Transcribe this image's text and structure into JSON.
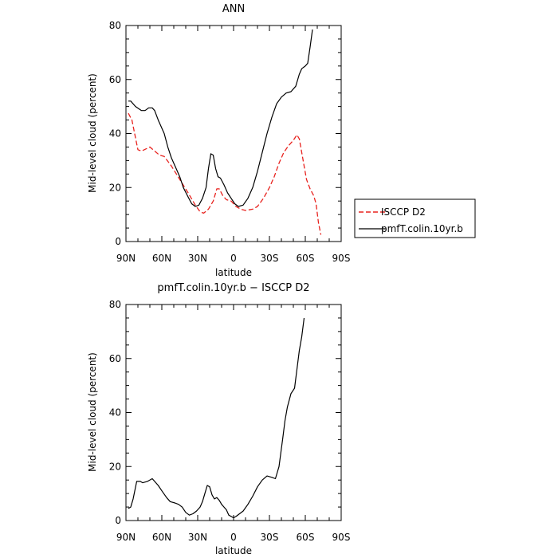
{
  "chart_data": [
    {
      "type": "line",
      "title": "ANN",
      "xlabel": "latitude",
      "ylabel": "Mid-level cloud (percent)",
      "xlim": [
        -90,
        90
      ],
      "ylim": [
        0,
        80
      ],
      "x_ticks": [
        -90,
        -60,
        -30,
        0,
        30,
        60,
        90
      ],
      "x_tick_labels": [
        "90N",
        "60N",
        "30N",
        "0",
        "30S",
        "60S",
        "90S"
      ],
      "y_ticks": [
        0,
        20,
        40,
        60,
        80
      ],
      "y_tick_labels": [
        "0",
        "20",
        "40",
        "60",
        "80"
      ],
      "legend": "outside-right",
      "series": [
        {
          "name": "ISCCP D2",
          "color": "#e8221e",
          "dash": "dashed",
          "points": [
            [
              -88,
              47.5
            ],
            [
              -85,
              45
            ],
            [
              -80,
              34
            ],
            [
              -77,
              33.5
            ],
            [
              -70,
              35
            ],
            [
              -62,
              32
            ],
            [
              -58,
              31.5
            ],
            [
              -52,
              28
            ],
            [
              -45,
              23
            ],
            [
              -38,
              18
            ],
            [
              -32,
              13.5
            ],
            [
              -28,
              11
            ],
            [
              -25,
              10.5
            ],
            [
              -21,
              12
            ],
            [
              -17,
              15
            ],
            [
              -14,
              19.5
            ],
            [
              -12,
              19.5
            ],
            [
              -9,
              17
            ],
            [
              -6,
              15.5
            ],
            [
              -2,
              15
            ],
            [
              2,
              13
            ],
            [
              6,
              12
            ],
            [
              10,
              11.5
            ],
            [
              16,
              12
            ],
            [
              20,
              13
            ],
            [
              25,
              16
            ],
            [
              30,
              20
            ],
            [
              34,
              24
            ],
            [
              38,
              29
            ],
            [
              42,
              33
            ],
            [
              46,
              35.5
            ],
            [
              50,
              37.5
            ],
            [
              53,
              39.5
            ],
            [
              55,
              38
            ],
            [
              57,
              33
            ],
            [
              59,
              28
            ],
            [
              61,
              23
            ],
            [
              64,
              19.5
            ],
            [
              67,
              17
            ],
            [
              69,
              14
            ],
            [
              71,
              7
            ],
            [
              73,
              2.5
            ]
          ]
        },
        {
          "name": "pmfT.colin.10yr.b",
          "color": "#000000",
          "dash": "solid",
          "points": [
            [
              -88,
              52
            ],
            [
              -86,
              52
            ],
            [
              -82,
              50
            ],
            [
              -77,
              48.5
            ],
            [
              -74,
              48.5
            ],
            [
              -71,
              49.5
            ],
            [
              -68,
              49.5
            ],
            [
              -66,
              48.5
            ],
            [
              -63,
              45
            ],
            [
              -58,
              40
            ],
            [
              -55,
              35
            ],
            [
              -52,
              31
            ],
            [
              -48,
              27
            ],
            [
              -45,
              24
            ],
            [
              -42,
              20
            ],
            [
              -38,
              16.5
            ],
            [
              -35,
              14
            ],
            [
              -32,
              13
            ],
            [
              -29,
              13.5
            ],
            [
              -26,
              16
            ],
            [
              -23,
              20
            ],
            [
              -21,
              27
            ],
            [
              -19,
              32.5
            ],
            [
              -17,
              32
            ],
            [
              -15,
              27
            ],
            [
              -13,
              24
            ],
            [
              -11,
              23.5
            ],
            [
              -8,
              21
            ],
            [
              -5,
              18
            ],
            [
              -2,
              16
            ],
            [
              1,
              14
            ],
            [
              4,
              13
            ],
            [
              8,
              13.5
            ],
            [
              12,
              16
            ],
            [
              16,
              20
            ],
            [
              20,
              26
            ],
            [
              24,
              33
            ],
            [
              28,
              40
            ],
            [
              32,
              46
            ],
            [
              36,
              51
            ],
            [
              40,
              53.5
            ],
            [
              44,
              55
            ],
            [
              48,
              55.5
            ],
            [
              52,
              57.5
            ],
            [
              55,
              62
            ],
            [
              57,
              64
            ],
            [
              60,
              65
            ],
            [
              62,
              66
            ],
            [
              64,
              72
            ],
            [
              66,
              78.5
            ]
          ]
        }
      ]
    },
    {
      "type": "line",
      "title": "pmfT.colin.10yr.b − ISCCP D2",
      "xlabel": "latitude",
      "ylabel": "Mid-level cloud (percent)",
      "xlim": [
        -90,
        90
      ],
      "ylim": [
        0,
        80
      ],
      "x_ticks": [
        -90,
        -60,
        -30,
        0,
        30,
        60,
        90
      ],
      "x_tick_labels": [
        "90N",
        "60N",
        "30N",
        "0",
        "30S",
        "60S",
        "90S"
      ],
      "y_ticks": [
        0,
        20,
        40,
        60,
        80
      ],
      "y_tick_labels": [
        "0",
        "20",
        "40",
        "60",
        "80"
      ],
      "series": [
        {
          "color": "#000000",
          "dash": "solid",
          "points": [
            [
              -88,
              4.5
            ],
            [
              -86,
              5
            ],
            [
              -84,
              8
            ],
            [
              -81,
              14.5
            ],
            [
              -78,
              14.5
            ],
            [
              -76,
              14
            ],
            [
              -72,
              14.5
            ],
            [
              -68,
              15.5
            ],
            [
              -66,
              14.5
            ],
            [
              -63,
              13
            ],
            [
              -60,
              11
            ],
            [
              -56,
              8.5
            ],
            [
              -53,
              7
            ],
            [
              -49,
              6.5
            ],
            [
              -46,
              6
            ],
            [
              -43,
              5
            ],
            [
              -40,
              3
            ],
            [
              -37,
              2
            ],
            [
              -34,
              2.5
            ],
            [
              -31,
              3.5
            ],
            [
              -28,
              5
            ],
            [
              -26,
              7
            ],
            [
              -24,
              10
            ],
            [
              -22,
              13
            ],
            [
              -20,
              12.5
            ],
            [
              -18,
              9.5
            ],
            [
              -16,
              8
            ],
            [
              -14,
              8.5
            ],
            [
              -12,
              7.5
            ],
            [
              -10,
              6
            ],
            [
              -8,
              5
            ],
            [
              -6,
              4
            ],
            [
              -4,
              2
            ],
            [
              -2,
              1.5
            ],
            [
              0,
              1
            ],
            [
              2,
              1.5
            ],
            [
              5,
              2.5
            ],
            [
              8,
              3.5
            ],
            [
              12,
              6
            ],
            [
              16,
              9
            ],
            [
              20,
              12.5
            ],
            [
              24,
              15
            ],
            [
              28,
              16.5
            ],
            [
              32,
              16
            ],
            [
              35,
              15.5
            ],
            [
              38,
              20
            ],
            [
              41,
              30
            ],
            [
              43,
              37
            ],
            [
              45,
              42
            ],
            [
              48,
              47
            ],
            [
              51,
              49
            ],
            [
              53,
              56
            ],
            [
              55,
              63
            ],
            [
              57,
              68
            ],
            [
              59,
              75
            ]
          ]
        }
      ]
    }
  ]
}
